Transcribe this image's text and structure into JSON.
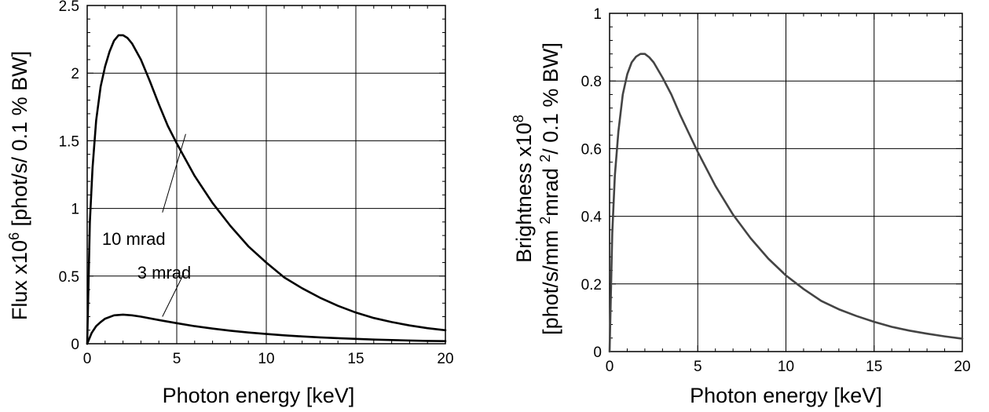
{
  "chart_data": [
    {
      "type": "line",
      "xlabel": "Photon energy [keV]",
      "ylabel": "Flux x10^6 [phot/s/ 0.1 % BW]",
      "ylabel_parts": [
        "Flux x10",
        "6",
        " [phot/s/ 0.1 % BW]"
      ],
      "xlim": [
        0,
        20
      ],
      "ylim": [
        0,
        2.5
      ],
      "x_ticks": [
        "0",
        "5",
        "10",
        "15",
        "20"
      ],
      "y_ticks": [
        "0",
        "0.5",
        "1",
        "1.5",
        "2",
        "2.5"
      ],
      "grid": true,
      "line_color": "#000000",
      "series": [
        {
          "name": "10 mrad",
          "x": [
            0,
            0.15,
            0.3,
            0.5,
            0.75,
            1,
            1.25,
            1.5,
            1.75,
            2,
            2.25,
            2.5,
            3,
            3.5,
            4,
            4.5,
            5,
            6,
            7,
            8,
            9,
            10,
            11,
            12,
            13,
            14,
            15,
            16,
            17,
            18,
            19,
            20
          ],
          "y": [
            0,
            0.9,
            1.3,
            1.65,
            1.9,
            2.05,
            2.16,
            2.24,
            2.28,
            2.28,
            2.26,
            2.22,
            2.1,
            1.94,
            1.77,
            1.61,
            1.48,
            1.24,
            1.04,
            0.87,
            0.72,
            0.6,
            0.49,
            0.41,
            0.34,
            0.28,
            0.23,
            0.19,
            0.16,
            0.135,
            0.115,
            0.1
          ]
        },
        {
          "name": "3 mrad",
          "x": [
            0,
            0.25,
            0.5,
            0.75,
            1,
            1.5,
            2,
            2.5,
            3,
            4,
            5,
            6,
            7,
            8,
            9,
            10,
            11,
            12,
            13,
            14,
            15,
            16,
            17,
            18,
            19,
            20
          ],
          "y": [
            0,
            0.08,
            0.13,
            0.16,
            0.185,
            0.21,
            0.215,
            0.21,
            0.2,
            0.175,
            0.152,
            0.13,
            0.112,
            0.096,
            0.083,
            0.072,
            0.062,
            0.054,
            0.047,
            0.041,
            0.036,
            0.031,
            0.027,
            0.024,
            0.021,
            0.019
          ]
        }
      ],
      "annotations": [
        {
          "text": "10 mrad",
          "pointer_from": [
            4.2,
            0.97
          ],
          "pointer_to": [
            5.5,
            1.55
          ]
        },
        {
          "text": "3 mrad",
          "pointer_from": [
            4.2,
            0.2
          ],
          "pointer_to": [
            5.4,
            0.52
          ]
        }
      ]
    },
    {
      "type": "line",
      "xlabel": "Photon energy [keV]",
      "ylabel_line1_parts": [
        "Brightness x10",
        "8"
      ],
      "ylabel_line2_parts": [
        "[phot/s/mm ",
        "2",
        "mrad ",
        "2",
        "/ 0.1 % BW]"
      ],
      "ylabel": "Brightness x10^8 [phot/s/mm 2mrad 2/ 0.1 % BW]",
      "xlim": [
        0,
        20
      ],
      "ylim": [
        0,
        1
      ],
      "x_ticks": [
        "0",
        "5",
        "10",
        "15",
        "20"
      ],
      "y_ticks": [
        "0",
        "0.2",
        "0.4",
        "0.6",
        "0.8",
        "1"
      ],
      "grid": true,
      "line_color": "#444444",
      "series": [
        {
          "x": [
            0,
            0.15,
            0.3,
            0.5,
            0.75,
            1,
            1.25,
            1.5,
            1.75,
            2,
            2.25,
            2.5,
            3,
            3.5,
            4,
            4.5,
            5,
            6,
            7,
            8,
            9,
            10,
            11,
            12,
            13,
            14,
            15,
            16,
            17,
            18,
            19,
            20
          ],
          "y": [
            0,
            0.35,
            0.52,
            0.65,
            0.76,
            0.82,
            0.855,
            0.872,
            0.88,
            0.88,
            0.87,
            0.855,
            0.81,
            0.76,
            0.7,
            0.645,
            0.59,
            0.49,
            0.405,
            0.335,
            0.275,
            0.225,
            0.185,
            0.15,
            0.125,
            0.105,
            0.088,
            0.073,
            0.062,
            0.053,
            0.045,
            0.038
          ]
        }
      ]
    }
  ]
}
